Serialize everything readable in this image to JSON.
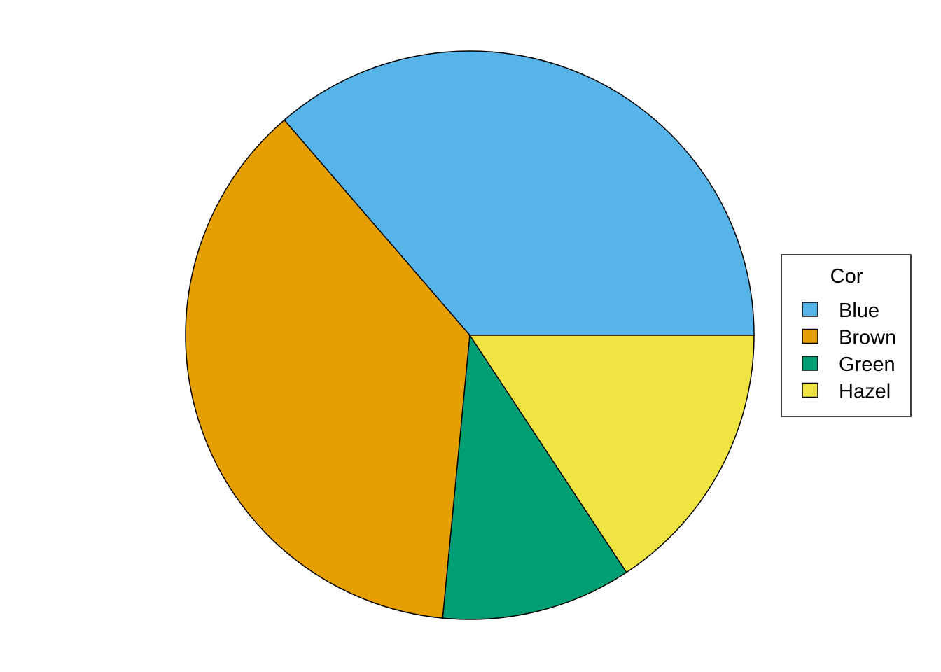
{
  "chart_data": {
    "type": "pie",
    "title": "",
    "categories": [
      "Blue",
      "Brown",
      "Green",
      "Hazel"
    ],
    "values": [
      215,
      220,
      64,
      93
    ],
    "colors": [
      "#56B4E9",
      "#E69F00",
      "#009E73",
      "#F0E442"
    ],
    "start_angle_deg": 0,
    "direction": "counterclockwise",
    "legend": {
      "title": "Cor",
      "placement": "right",
      "entries": [
        "Blue",
        "Brown",
        "Green",
        "Hazel"
      ]
    }
  }
}
